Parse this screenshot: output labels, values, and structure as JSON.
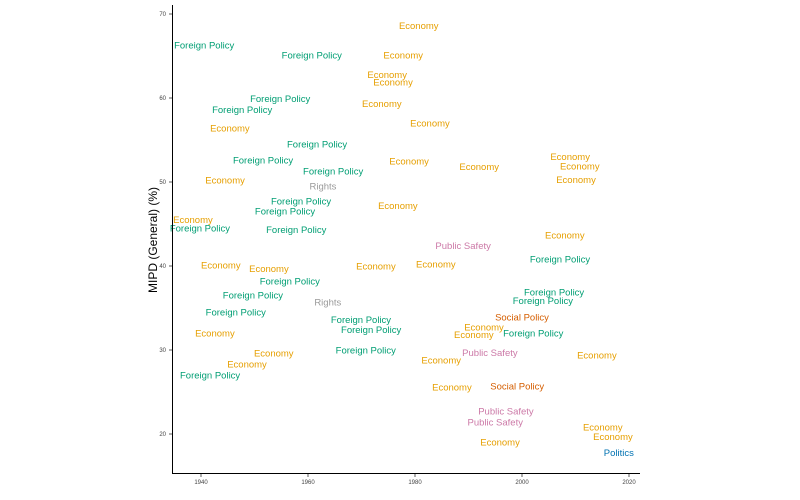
{
  "chart_data": {
    "type": "scatter",
    "marker": "text-label",
    "title": "",
    "xlabel": "",
    "ylabel": "MIPD (General)  (%)",
    "xlim": [
      1935,
      2022
    ],
    "ylim": [
      15,
      71
    ],
    "xticks": [
      1940,
      1960,
      1980,
      2000,
      2020
    ],
    "yticks": [
      20,
      30,
      40,
      50,
      60,
      70
    ],
    "grid": false,
    "legend": "none",
    "colors": {
      "Economy": "#E69F00",
      "Foreign Policy": "#009E73",
      "Rights": "#999999",
      "Public Safety": "#CC79A7",
      "Social Policy": "#D55E00",
      "Politics": "#0072B2"
    },
    "points": [
      {
        "label": "Economy",
        "x": 1980.7,
        "y": 68.5
      },
      {
        "label": "Foreign Policy",
        "x": 1940.6,
        "y": 66.2
      },
      {
        "label": "Foreign Policy",
        "x": 1960.7,
        "y": 65.0
      },
      {
        "label": "Economy",
        "x": 1977.8,
        "y": 65.0
      },
      {
        "label": "Economy",
        "x": 1974.8,
        "y": 62.7
      },
      {
        "label": "Economy",
        "x": 1975.9,
        "y": 61.8
      },
      {
        "label": "Foreign Policy",
        "x": 1954.8,
        "y": 59.8
      },
      {
        "label": "Foreign Policy",
        "x": 1947.7,
        "y": 58.5
      },
      {
        "label": "Economy",
        "x": 1973.8,
        "y": 59.2
      },
      {
        "label": "Economy",
        "x": 1945.4,
        "y": 56.3
      },
      {
        "label": "Economy",
        "x": 1982.8,
        "y": 56.9
      },
      {
        "label": "Foreign Policy",
        "x": 1961.7,
        "y": 54.4
      },
      {
        "label": "Foreign Policy",
        "x": 1951.6,
        "y": 52.5
      },
      {
        "label": "Economy",
        "x": 1978.9,
        "y": 52.4
      },
      {
        "label": "Economy",
        "x": 1992.0,
        "y": 51.7
      },
      {
        "label": "Foreign Policy",
        "x": 1964.7,
        "y": 51.2
      },
      {
        "label": "Economy",
        "x": 1944.5,
        "y": 50.1
      },
      {
        "label": "Rights",
        "x": 1962.8,
        "y": 49.4
      },
      {
        "label": "Economy",
        "x": 2009.0,
        "y": 52.9
      },
      {
        "label": "Economy",
        "x": 2010.8,
        "y": 51.8
      },
      {
        "label": "Economy",
        "x": 2010.1,
        "y": 50.2
      },
      {
        "label": "Foreign Policy",
        "x": 1958.7,
        "y": 47.6
      },
      {
        "label": "Economy",
        "x": 1976.8,
        "y": 47.1
      },
      {
        "label": "Foreign Policy",
        "x": 1955.7,
        "y": 46.4
      },
      {
        "label": "Economy",
        "x": 1938.5,
        "y": 45.4
      },
      {
        "label": "Foreign Policy",
        "x": 1939.8,
        "y": 44.4
      },
      {
        "label": "Foreign Policy",
        "x": 1957.8,
        "y": 44.2
      },
      {
        "label": "Public Safety",
        "x": 1989.0,
        "y": 42.3
      },
      {
        "label": "Economy",
        "x": 2008.0,
        "y": 43.6
      },
      {
        "label": "Economy",
        "x": 1943.7,
        "y": 40.0
      },
      {
        "label": "Economy",
        "x": 1952.7,
        "y": 39.6
      },
      {
        "label": "Economy",
        "x": 1972.7,
        "y": 39.9
      },
      {
        "label": "Economy",
        "x": 1983.9,
        "y": 40.1
      },
      {
        "label": "Foreign Policy",
        "x": 2007.1,
        "y": 40.7
      },
      {
        "label": "Foreign Policy",
        "x": 1956.6,
        "y": 38.1
      },
      {
        "label": "Foreign Policy",
        "x": 1949.7,
        "y": 36.4
      },
      {
        "label": "Rights",
        "x": 1963.7,
        "y": 35.6
      },
      {
        "label": "Foreign Policy",
        "x": 1946.5,
        "y": 34.4
      },
      {
        "label": "Foreign Policy",
        "x": 2006.0,
        "y": 36.8
      },
      {
        "label": "Foreign Policy",
        "x": 2003.9,
        "y": 35.8
      },
      {
        "label": "Social Policy",
        "x": 2000.0,
        "y": 33.8
      },
      {
        "label": "Economy",
        "x": 1992.9,
        "y": 32.6
      },
      {
        "label": "Economy",
        "x": 1991.0,
        "y": 31.7
      },
      {
        "label": "Foreign Policy",
        "x": 2002.1,
        "y": 31.9
      },
      {
        "label": "Foreign Policy",
        "x": 1969.9,
        "y": 33.5
      },
      {
        "label": "Foreign Policy",
        "x": 1971.8,
        "y": 32.3
      },
      {
        "label": "Economy",
        "x": 1942.6,
        "y": 31.9
      },
      {
        "label": "Public Safety",
        "x": 1994.0,
        "y": 29.6
      },
      {
        "label": "Foreign Policy",
        "x": 1970.8,
        "y": 29.9
      },
      {
        "label": "Economy",
        "x": 1953.6,
        "y": 29.5
      },
      {
        "label": "Economy",
        "x": 2014.0,
        "y": 29.3
      },
      {
        "label": "Economy",
        "x": 1984.9,
        "y": 28.7
      },
      {
        "label": "Economy",
        "x": 1948.6,
        "y": 28.2
      },
      {
        "label": "Foreign Policy",
        "x": 1941.7,
        "y": 26.9
      },
      {
        "label": "Economy",
        "x": 1986.9,
        "y": 25.5
      },
      {
        "label": "Social Policy",
        "x": 1999.1,
        "y": 25.6
      },
      {
        "label": "Public Safety",
        "x": 1997.0,
        "y": 22.6
      },
      {
        "label": "Public Safety",
        "x": 1995.0,
        "y": 21.3
      },
      {
        "label": "Economy",
        "x": 2015.1,
        "y": 20.7
      },
      {
        "label": "Economy",
        "x": 2017.0,
        "y": 19.6
      },
      {
        "label": "Economy",
        "x": 1995.9,
        "y": 18.9
      },
      {
        "label": "Politics",
        "x": 2018.1,
        "y": 17.7
      }
    ]
  }
}
